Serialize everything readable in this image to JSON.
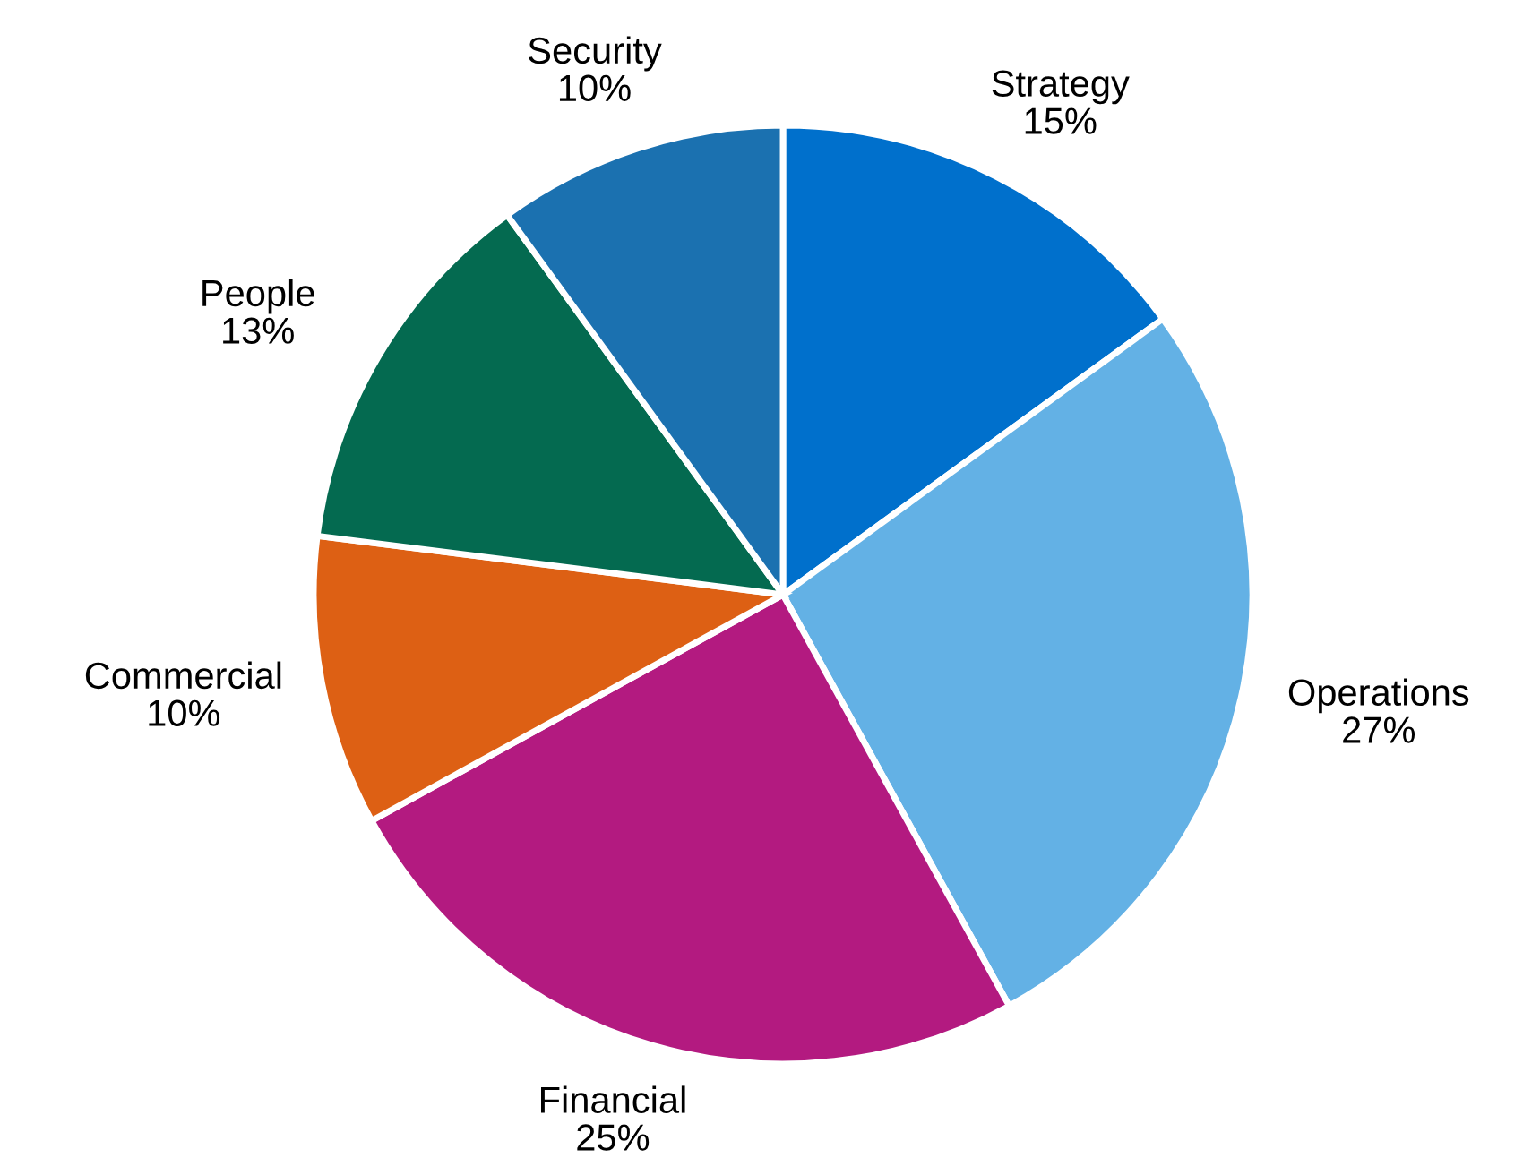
{
  "chart_data": {
    "type": "pie",
    "categories": [
      "Strategy",
      "Operations",
      "Financial",
      "Commercial",
      "People",
      "Security"
    ],
    "values": [
      15,
      27,
      25,
      10,
      13,
      10
    ],
    "colors": [
      "#0070cc",
      "#63b1e5",
      "#b31a80",
      "#dd6014",
      "#046a50",
      "#1b71b0"
    ],
    "value_labels": [
      "15%",
      "27%",
      "25%",
      "10%",
      "13%",
      "10%"
    ]
  }
}
